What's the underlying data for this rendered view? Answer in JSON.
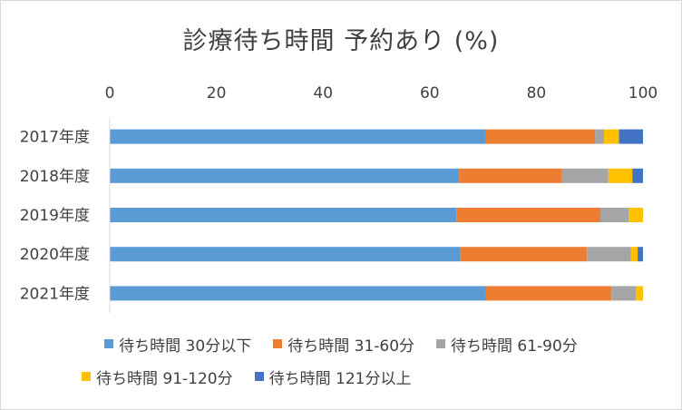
{
  "chart_data": {
    "type": "bar",
    "orientation": "horizontal",
    "stacked": true,
    "title": "診療待ち時間 予約あり (%)",
    "categories": [
      "2017年度",
      "2018年度",
      "2019年度",
      "2020年度",
      "2021年度"
    ],
    "xlim": [
      0,
      100
    ],
    "xticks": [
      "0",
      "20",
      "40",
      "60",
      "80",
      "100"
    ],
    "grid": false,
    "legend_position": "bottom",
    "series": [
      {
        "name": "待ち時間 30分以下",
        "color": "#5b9bd5",
        "values": [
          70.5,
          65.5,
          65,
          65.7,
          70.5
        ]
      },
      {
        "name": "待ち時間 31-60分",
        "color": "#ed7d31",
        "values": [
          20.5,
          19.3,
          27,
          23.8,
          23.6
        ]
      },
      {
        "name": "待ち時間 61-90分",
        "color": "#a5a5a5",
        "values": [
          1.7,
          8.7,
          5.3,
          8.2,
          4.6
        ]
      },
      {
        "name": "待ち時間 91-120分",
        "color": "#ffc000",
        "values": [
          2.8,
          4.5,
          2.7,
          1.3,
          1.3
        ]
      },
      {
        "name": "待ち時間 121分以上",
        "color": "#4472c4",
        "values": [
          4.5,
          2.0,
          0,
          1.0,
          0
        ]
      }
    ]
  }
}
